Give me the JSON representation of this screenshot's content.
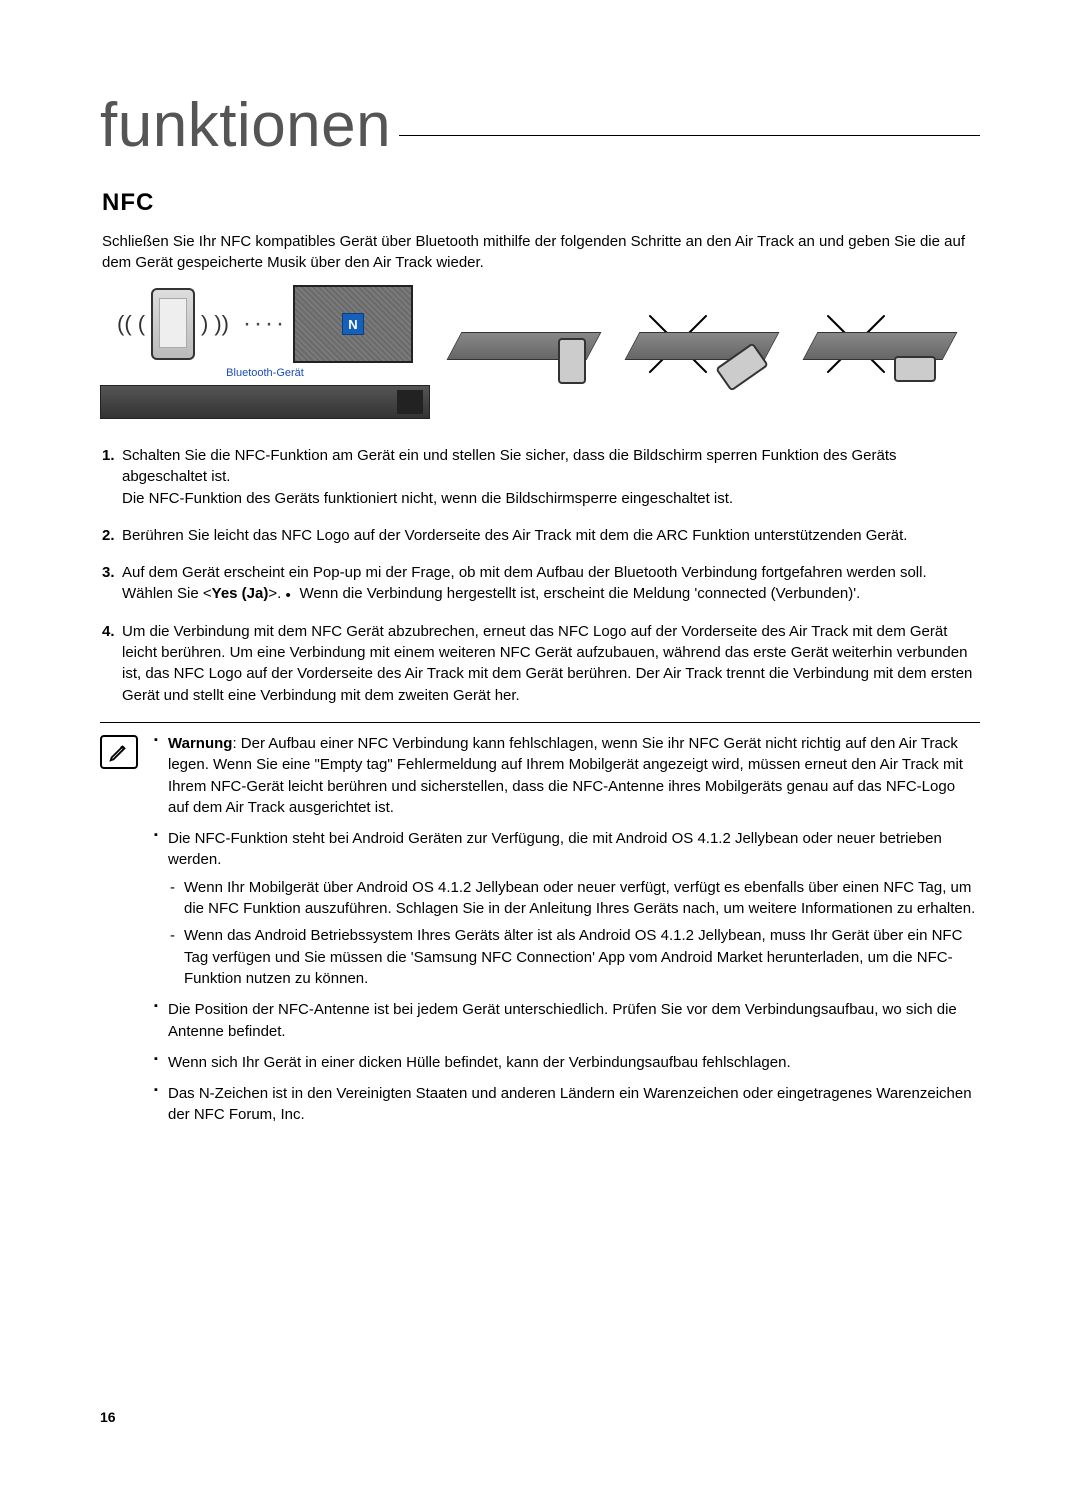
{
  "page": {
    "title": "funktionen",
    "section_heading": "NFC",
    "intro": "Schließen Sie Ihr NFC kompatibles Gerät über Bluetooth mithilfe der folgenden Schritte an den Air Track an und geben Sie die auf dem Gerät gespeicherte Musik über den Air Track wieder.",
    "page_number": "16"
  },
  "figure": {
    "bluetooth_label": "Bluetooth-Gerät",
    "nfc_mark": "N"
  },
  "steps": [
    {
      "num": "1.",
      "text": "Schalten Sie die NFC-Funktion am Gerät ein und stellen Sie sicher, dass die Bildschirm sperren Funktion des Geräts abgeschaltet ist.",
      "after": "Die NFC-Funktion des Geräts funktioniert nicht, wenn die Bildschirmsperre eingeschaltet ist."
    },
    {
      "num": "2.",
      "text": "Berühren Sie leicht das NFC Logo auf der Vorderseite des Air Track mit dem die ARC Funktion unterstützenden Gerät."
    },
    {
      "num": "3.",
      "text_html": "Auf dem Gerät erscheint ein Pop-up mi der Frage, ob mit dem Aufbau der Bluetooth Verbindung fortgefahren werden soll. Wählen Sie <<b>Yes (Ja)</b>>.",
      "bullet": "Wenn die Verbindung hergestellt ist, erscheint die Meldung 'connected (Verbunden)'."
    },
    {
      "num": "4.",
      "text": "Um die Verbindung mit dem NFC Gerät abzubrechen, erneut das NFC Logo auf der Vorderseite des Air Track mit dem Gerät leicht berühren. Um eine Verbindung mit einem weiteren NFC Gerät aufzubauen, während das erste Gerät weiterhin verbunden ist, das NFC Logo auf der Vorderseite des Air Track mit dem Gerät berühren. Der Air Track trennt die Verbindung mit dem ersten Gerät und stellt eine Verbindung mit dem zweiten Gerät her."
    }
  ],
  "notes": [
    {
      "prefix_bold": "Warnung",
      "text": ": Der Aufbau einer NFC Verbindung kann fehlschlagen, wenn Sie ihr NFC Gerät nicht richtig auf den Air Track legen. Wenn Sie eine \"Empty tag\" Fehlermeldung auf Ihrem Mobilgerät angezeigt wird, müssen erneut den Air Track mit Ihrem NFC-Gerät leicht berühren und sicherstellen, dass die NFC-Antenne ihres Mobilgeräts genau auf das NFC-Logo auf dem Air Track ausgerichtet ist."
    },
    {
      "text": "Die NFC-Funktion steht bei Android Geräten zur Verfügung, die mit Android OS 4.1.2 Jellybean oder neuer betrieben werden.",
      "sub": [
        "Wenn Ihr Mobilgerät über Android OS 4.1.2 Jellybean oder neuer verfügt, verfügt es ebenfalls über einen NFC Tag, um die NFC Funktion auszuführen. Schlagen Sie in der Anleitung Ihres Geräts nach, um weitere Informationen zu erhalten.",
        "Wenn das Android Betriebssystem Ihres Geräts älter ist als Android OS 4.1.2 Jellybean, muss Ihr Gerät über ein NFC Tag verfügen und Sie müssen die 'Samsung NFC Connection' App vom Android Market herunterladen, um die NFC-Funktion nutzen zu können."
      ]
    },
    {
      "text": "Die Position der NFC-Antenne ist bei jedem Gerät unterschiedlich. Prüfen Sie vor dem Verbindungsaufbau, wo sich die Antenne befindet."
    },
    {
      "text": "Wenn sich Ihr Gerät in einer dicken Hülle befindet, kann der Verbindungsaufbau fehlschlagen."
    },
    {
      "text": "Das N-Zeichen ist in den Vereinigten Staaten und anderen Ländern ein Warenzeichen oder eingetragenes Warenzeichen der NFC Forum, Inc."
    }
  ],
  "colors": {
    "link_blue": "#1a4db3",
    "nfc_blue": "#1560b8",
    "text": "#000000",
    "title_gray": "#555555"
  }
}
